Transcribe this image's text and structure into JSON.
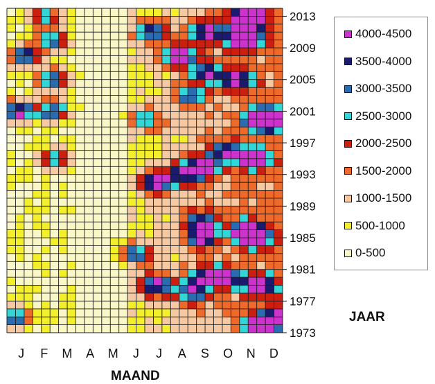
{
  "chart_data": {
    "type": "heatmap",
    "xlabel": "MAAND",
    "ylabel": "JAAR",
    "x_categories": [
      "J",
      "F",
      "M",
      "A",
      "M",
      "J",
      "J",
      "A",
      "S",
      "O",
      "N",
      "D"
    ],
    "y_ticks": [
      2013,
      2009,
      2005,
      2001,
      1997,
      1993,
      1989,
      1985,
      1981,
      1977,
      1973
    ],
    "y_range": [
      1973,
      2014
    ],
    "grid": true,
    "legend_placement": "right",
    "levels": [
      {
        "label": "4000-4500",
        "color": "#cc33cc"
      },
      {
        "label": "3500-4000",
        "color": "#1a1a6e"
      },
      {
        "label": "3000-3500",
        "color": "#2b6cb0"
      },
      {
        "label": "2500-3000",
        "color": "#33d6d6"
      },
      {
        "label": "2000-2500",
        "color": "#cc1f10"
      },
      {
        "label": "1500-2000",
        "color": "#ee6a2a"
      },
      {
        "label": "1000-1500",
        "color": "#f6c9a2"
      },
      {
        "label": "500-1000",
        "color": "#f3ef2a"
      },
      {
        "label": "0-500",
        "color": "#f9f6c8"
      }
    ],
    "hotspots": [
      {
        "month": 10.8,
        "year": 2010,
        "value": 4300
      },
      {
        "month": 11.0,
        "year": 2014,
        "value": 4200
      },
      {
        "month": 1.0,
        "year": 2001,
        "value": 4050
      },
      {
        "month": 1.3,
        "year": 2008,
        "value": 3600
      },
      {
        "month": 2.5,
        "year": 2010,
        "value": 3100
      },
      {
        "month": 2.5,
        "year": 2005,
        "value": 3300
      },
      {
        "month": 2.5,
        "year": 2001,
        "value": 3400
      },
      {
        "month": 2.6,
        "year": 1995,
        "value": 2800
      },
      {
        "month": 2.1,
        "year": 2013,
        "value": 2500
      },
      {
        "month": 7.0,
        "year": 1992,
        "value": 3900
      },
      {
        "month": 8.2,
        "year": 1993,
        "value": 2900
      },
      {
        "month": 9.0,
        "year": 1994,
        "value": 3600
      },
      {
        "month": 10.0,
        "year": 1996,
        "value": 3000
      },
      {
        "month": 11.2,
        "year": 1995,
        "value": 3700
      },
      {
        "month": 11.5,
        "year": 2000,
        "value": 3600
      },
      {
        "month": 12.0,
        "year": 2000,
        "value": 3800
      },
      {
        "month": 8.0,
        "year": 2008,
        "value": 3600
      },
      {
        "month": 9.2,
        "year": 2011,
        "value": 3400
      },
      {
        "month": 9.2,
        "year": 2006,
        "value": 3000
      },
      {
        "month": 8.5,
        "year": 2003,
        "value": 2600
      },
      {
        "month": 6.8,
        "year": 2011,
        "value": 3100
      },
      {
        "month": 11.0,
        "year": 2012,
        "value": 3900
      },
      {
        "month": 10.5,
        "year": 2005,
        "value": 3100
      },
      {
        "month": 9.0,
        "year": 1987,
        "value": 3300
      },
      {
        "month": 11.0,
        "year": 1986,
        "value": 3500
      },
      {
        "month": 9.0,
        "year": 1985,
        "value": 3200
      },
      {
        "month": 6.0,
        "year": 1983,
        "value": 2700
      },
      {
        "month": 7.0,
        "year": 1979,
        "value": 3500
      },
      {
        "month": 10.0,
        "year": 1980,
        "value": 3300
      },
      {
        "month": 11.5,
        "year": 1979,
        "value": 3700
      },
      {
        "month": 11.5,
        "year": 1974,
        "value": 3700
      },
      {
        "month": 12.5,
        "year": 1975,
        "value": 3000
      },
      {
        "month": 0.8,
        "year": 1975,
        "value": 3200
      },
      {
        "month": 8.5,
        "year": 1978,
        "value": 2500
      },
      {
        "month": 9.0,
        "year": 1980,
        "value": 2500
      },
      {
        "month": 6.5,
        "year": 2000,
        "value": 2200
      },
      {
        "month": 11.2,
        "year": 1985,
        "value": 3600
      }
    ]
  },
  "axis_title_x": "MAAND",
  "axis_title_y": "JAAR"
}
